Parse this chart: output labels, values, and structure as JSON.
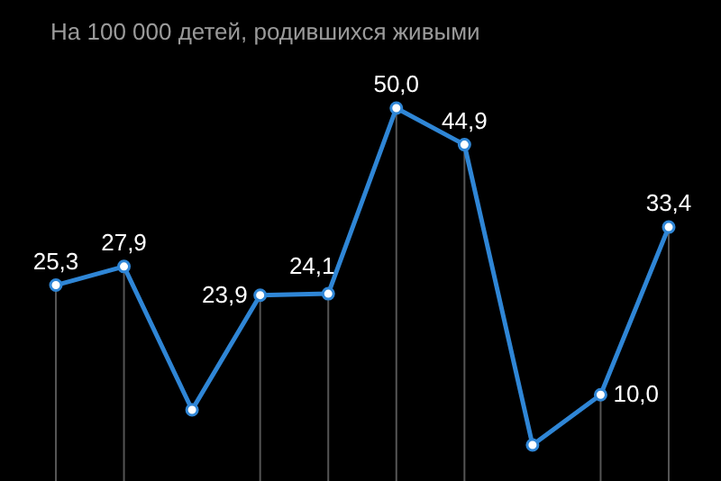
{
  "chart_data": {
    "type": "line",
    "title": "На 100 000 детей, родившихся живыми",
    "categories": [
      null,
      null,
      null,
      null,
      null,
      null,
      null,
      null,
      null,
      null
    ],
    "series": [
      {
        "color": "#2f86d6",
        "values": [
          25.3,
          27.9,
          7.9,
          23.9,
          24.1,
          50.0,
          44.9,
          3,
          10.0,
          33.4
        ],
        "value_labels": [
          "25,3",
          "27,9",
          null,
          "23,9",
          "24,1",
          "50,0",
          "44,9",
          null,
          "10,0",
          "33,4"
        ]
      }
    ],
    "grid": "x",
    "marker": "circle"
  }
}
